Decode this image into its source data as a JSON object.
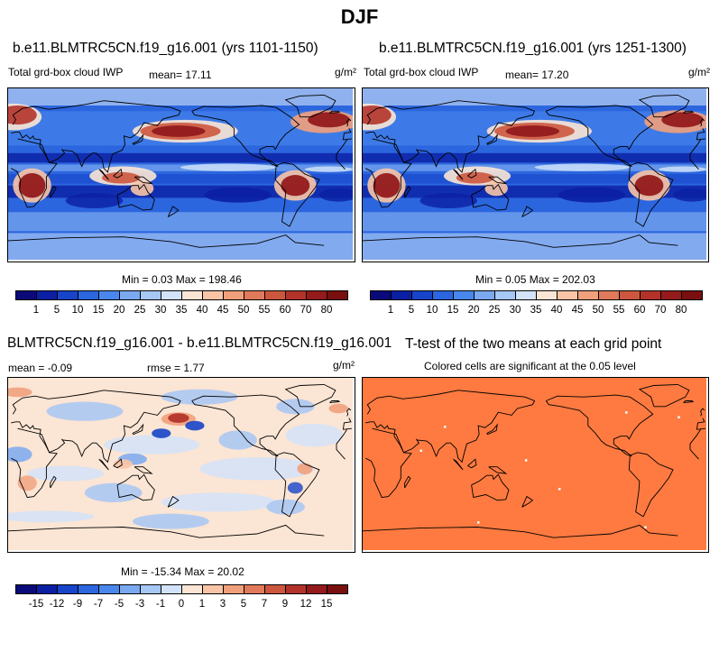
{
  "title": "DJF",
  "colors": {
    "scale": [
      "#0a0a7a",
      "#0b1fa3",
      "#1744c9",
      "#2c66df",
      "#4a87ec",
      "#7aa9f0",
      "#a7c7f5",
      "#d2e3f9",
      "#fbe5d4",
      "#f9c5a6",
      "#f1a07c",
      "#e17a5a",
      "#cd563e",
      "#b3332a",
      "#941a1b",
      "#7a0f0f"
    ],
    "ttest": "#fe7a40"
  },
  "panels": {
    "p1": {
      "title": "b.e11.BLMTRC5CN.f19_g16.001 (yrs 1101-1150)",
      "left_label": "Total grd-box cloud IWP",
      "mean": "mean=  17.11",
      "units": "g/m²",
      "minmax": "Min =   0.03 Max = 198.46"
    },
    "p2": {
      "title": "b.e11.BLMTRC5CN.f19_g16.001 (yrs 1251-1300)",
      "left_label": "Total grd-box cloud IWP",
      "mean": "mean=  17.20",
      "units": "g/m²",
      "minmax": "Min =   0.05 Max = 202.03"
    },
    "p3": {
      "title": "BLMTRC5CN.f19_g16.001 - b.e11.BLMTRC5CN.f19_g16.001",
      "mean": "mean =  -0.09",
      "rmse": "rmse =   1.77",
      "units": "g/m²",
      "minmax": "Min = -15.34 Max =  20.02"
    },
    "p4": {
      "title": "T-test of the two means at each grid point",
      "subtitle": "Colored cells are significant at the 0.05 level"
    }
  },
  "chart_data": [
    {
      "type": "heatmap",
      "title": "b.e11.BLMTRC5CN.f19_g16.001 (yrs 1101-1150)",
      "variable": "Total grd-box cloud IWP",
      "units": "g/m²",
      "mean": 17.11,
      "min": 0.03,
      "max": 198.46,
      "colorbar_levels": [
        1,
        5,
        10,
        15,
        20,
        25,
        30,
        35,
        40,
        45,
        50,
        55,
        60,
        70,
        80
      ],
      "colorbar_labels": [
        "1",
        "5",
        "10",
        "15",
        "20",
        "25",
        "30",
        "35",
        "40",
        "45",
        "50",
        "55",
        "60",
        "70",
        "80"
      ]
    },
    {
      "type": "heatmap",
      "title": "b.e11.BLMTRC5CN.f19_g16.001 (yrs 1251-1300)",
      "variable": "Total grd-box cloud IWP",
      "units": "g/m²",
      "mean": 17.2,
      "min": 0.05,
      "max": 202.03,
      "colorbar_levels": [
        1,
        5,
        10,
        15,
        20,
        25,
        30,
        35,
        40,
        45,
        50,
        55,
        60,
        70,
        80
      ],
      "colorbar_labels": [
        "1",
        "5",
        "10",
        "15",
        "20",
        "25",
        "30",
        "35",
        "40",
        "45",
        "50",
        "55",
        "60",
        "70",
        "80"
      ]
    },
    {
      "type": "heatmap",
      "title": "BLMTRC5CN.f19_g16.001 - b.e11.BLMTRC5CN.f19_g16.001",
      "units": "g/m²",
      "mean": -0.09,
      "rmse": 1.77,
      "min": -15.34,
      "max": 20.02,
      "colorbar_levels": [
        -15,
        -12,
        -9,
        -7,
        -5,
        -3,
        -1,
        0,
        1,
        3,
        5,
        7,
        9,
        12,
        15
      ],
      "colorbar_labels": [
        "-15",
        "-12",
        "-9",
        "-7",
        "-5",
        "-3",
        "-1",
        "0",
        "1",
        "3",
        "5",
        "7",
        "9",
        "12",
        "15"
      ]
    },
    {
      "type": "heatmap",
      "title": "T-test of the two means at each grid point",
      "subtitle": "Colored cells are significant at the 0.05 level"
    }
  ]
}
